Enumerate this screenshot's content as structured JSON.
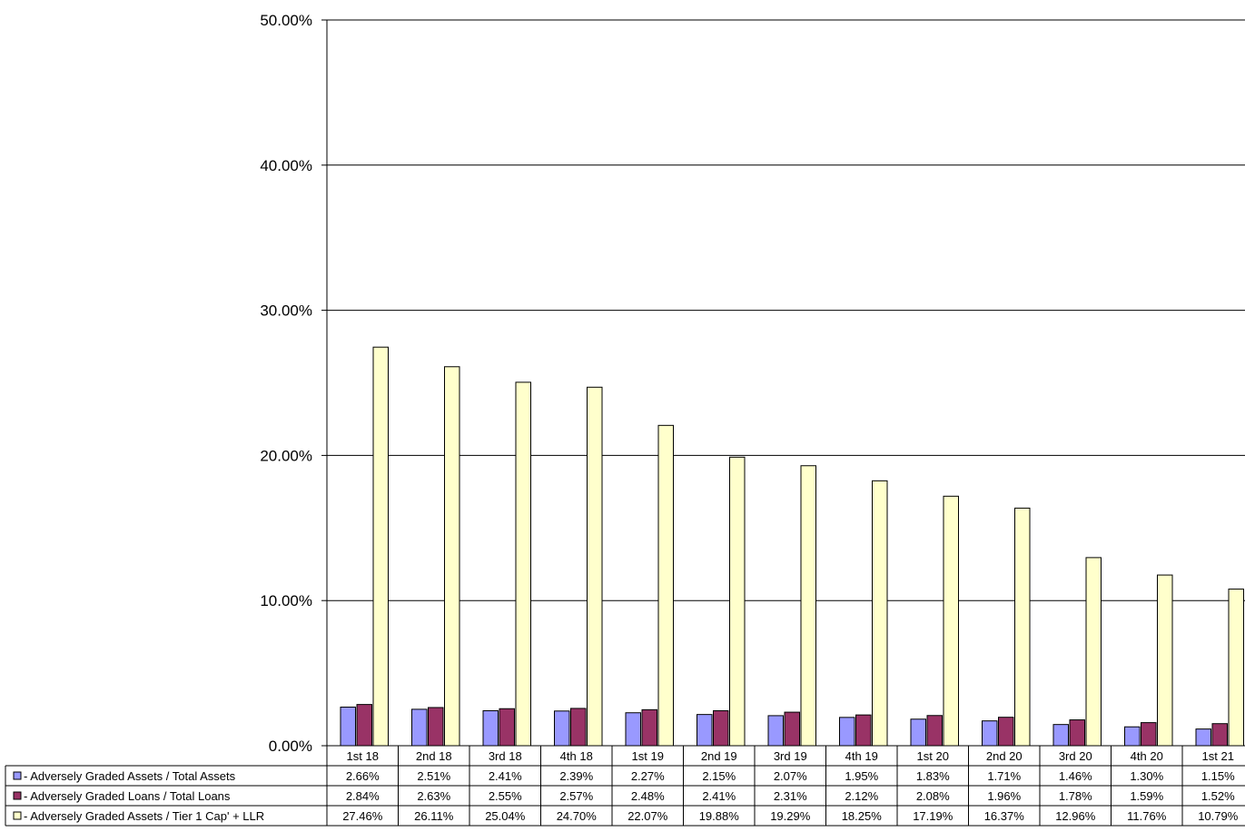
{
  "chart_data": {
    "type": "bar",
    "title": "",
    "xlabel": "",
    "ylabel": "",
    "ylim": [
      0,
      50
    ],
    "y_ticks": [
      "0.00%",
      "10.00%",
      "20.00%",
      "30.00%",
      "40.00%",
      "50.00%"
    ],
    "grid": true,
    "legend": "data table below chart",
    "categories": [
      "1st 18",
      "2nd 18",
      "3rd 18",
      "4th 18",
      "1st 19",
      "2nd 19",
      "3rd 19",
      "4th 19",
      "1st 20",
      "2nd 20",
      "3rd 20",
      "4th 20",
      "1st 21"
    ],
    "series": [
      {
        "name": " - Adversely Graded Assets / Total Assets",
        "color": "#9999ff",
        "values": [
          2.66,
          2.51,
          2.41,
          2.39,
          2.27,
          2.15,
          2.07,
          1.95,
          1.83,
          1.71,
          1.46,
          1.3,
          1.15
        ],
        "labels": [
          "2.66%",
          "2.51%",
          "2.41%",
          "2.39%",
          "2.27%",
          "2.15%",
          "2.07%",
          "1.95%",
          "1.83%",
          "1.71%",
          "1.46%",
          "1.30%",
          "1.15%"
        ]
      },
      {
        "name": " - Adversely Graded Loans / Total Loans",
        "color": "#993366",
        "values": [
          2.84,
          2.63,
          2.55,
          2.57,
          2.48,
          2.41,
          2.31,
          2.12,
          2.08,
          1.96,
          1.78,
          1.59,
          1.52
        ],
        "labels": [
          "2.84%",
          "2.63%",
          "2.55%",
          "2.57%",
          "2.48%",
          "2.41%",
          "2.31%",
          "2.12%",
          "2.08%",
          "1.96%",
          "1.78%",
          "1.59%",
          "1.52%"
        ]
      },
      {
        "name": " - Adversely Graded Assets / Tier 1 Cap' + LLR",
        "color": "#ffffcc",
        "values": [
          27.46,
          26.11,
          25.04,
          24.7,
          22.07,
          19.88,
          19.29,
          18.25,
          17.19,
          16.37,
          12.96,
          11.76,
          10.79
        ],
        "labels": [
          "27.46%",
          "26.11%",
          "25.04%",
          "24.70%",
          "22.07%",
          "19.88%",
          "19.29%",
          "18.25%",
          "17.19%",
          "16.37%",
          "12.96%",
          "11.76%",
          "10.79%"
        ]
      }
    ]
  }
}
